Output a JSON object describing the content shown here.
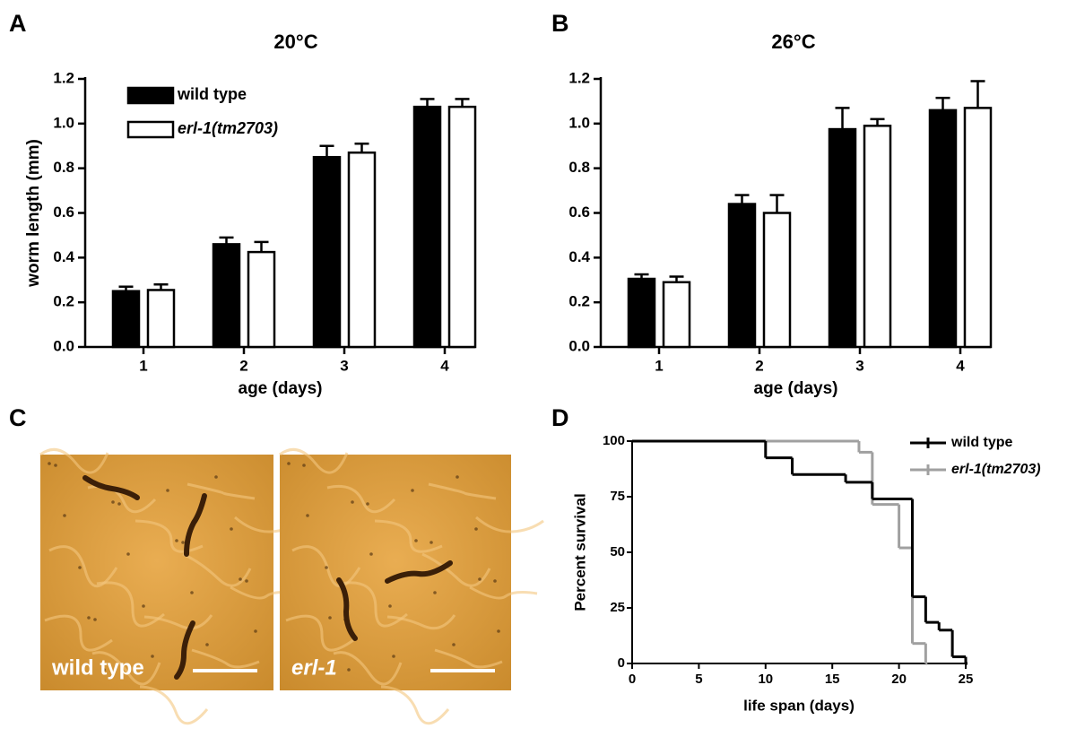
{
  "chart_data": [
    {
      "type": "bar",
      "panel": "A",
      "title": "20°C",
      "xlabel": "age (days)",
      "ylabel": "worm length (mm)",
      "categories": [
        "1",
        "2",
        "3",
        "4"
      ],
      "ylim": [
        0,
        1.2
      ],
      "yticks": [
        {
          "value": 0,
          "label": "0.0"
        },
        0.2,
        0.4,
        0.6,
        0.8,
        {
          "value": 1,
          "label": "1.0"
        },
        1.2
      ],
      "legend": "upper left",
      "series": [
        {
          "name": "wild type",
          "color": "#000000",
          "values": [
            0.25,
            0.46,
            0.85,
            1.075
          ],
          "errors": [
            0.02,
            0.03,
            0.05,
            0.035
          ]
        },
        {
          "name": "erl-1(tm2703)",
          "italic": true,
          "color": "#ffffff",
          "values": [
            0.255,
            0.425,
            0.87,
            1.075
          ],
          "errors": [
            0.025,
            0.045,
            0.04,
            0.035
          ]
        }
      ]
    },
    {
      "type": "bar",
      "panel": "B",
      "title": "26°C",
      "xlabel": "age (days)",
      "categories": [
        "1",
        "2",
        "3",
        "4"
      ],
      "ylim": [
        0,
        1.2
      ],
      "yticks": [
        {
          "value": 0,
          "label": "0.0"
        },
        0.2,
        0.4,
        0.6,
        0.8,
        {
          "value": 1,
          "label": "1.0"
        },
        1.2
      ],
      "series": [
        {
          "color": "#000000",
          "values": [
            0.305,
            0.64,
            0.975,
            1.06
          ],
          "errors": [
            0.02,
            0.04,
            0.095,
            0.055
          ]
        },
        {
          "color": "#ffffff",
          "values": [
            0.29,
            0.6,
            0.99,
            1.07
          ],
          "errors": [
            0.025,
            0.08,
            0.03,
            0.12
          ]
        }
      ]
    },
    {
      "type": "image",
      "panel": "C",
      "captions": [
        "wild type",
        "erl-1"
      ]
    },
    {
      "type": "survival",
      "panel": "D",
      "xlabel": "life span (days)",
      "ylabel": "Percent survival",
      "xlim": [
        0,
        25
      ],
      "xticks": [
        0,
        5,
        10,
        15,
        20,
        25
      ],
      "ylim": [
        0,
        100
      ],
      "yticks": [
        0,
        25,
        50,
        75,
        100
      ],
      "legend": "upper right",
      "series": [
        {
          "name": "wild type",
          "color": "#000000",
          "x": [
            0,
            10,
            12,
            16,
            18,
            21,
            22,
            23,
            24,
            25
          ],
          "values": [
            100,
            92.5,
            85,
            81.5,
            74,
            30,
            18.5,
            15,
            3,
            0
          ]
        },
        {
          "name": "erl-1(tm2703)",
          "italic": true,
          "color": "#a0a0a0",
          "x": [
            0,
            17,
            18,
            20,
            21,
            22
          ],
          "values": [
            100,
            95,
            71.5,
            52,
            9,
            0
          ]
        }
      ]
    }
  ]
}
